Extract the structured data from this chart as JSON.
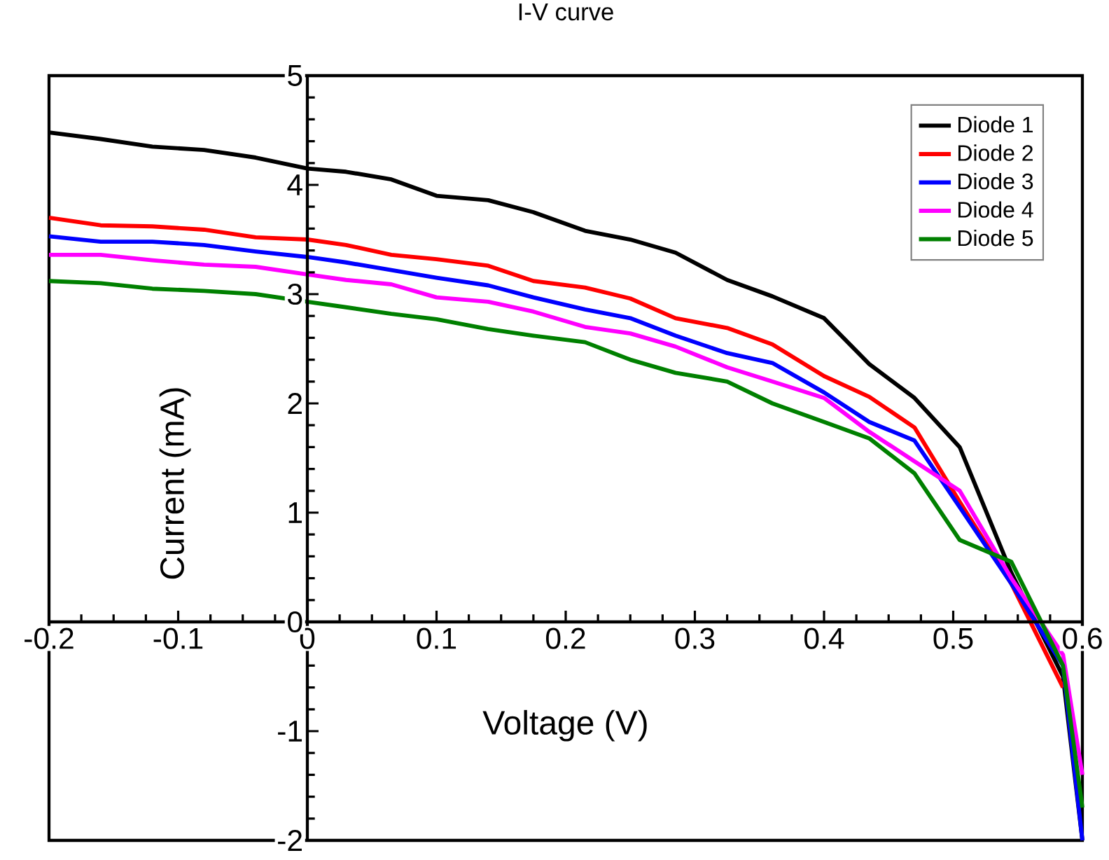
{
  "chart_data": {
    "type": "line",
    "title": "I-V curve",
    "xlabel": "Voltage (V)",
    "ylabel": "Current (mA)",
    "x": [
      -0.2,
      -0.16,
      -0.12,
      -0.08,
      -0.04,
      0,
      0.03,
      0.065,
      0.1,
      0.14,
      0.175,
      0.215,
      0.25,
      0.285,
      0.325,
      0.36,
      0.4,
      0.435,
      0.47,
      0.505,
      0.545,
      0.585,
      0.6
    ],
    "series": [
      {
        "name": "Diode 1",
        "color": "#000000",
        "values": [
          4.48,
          4.42,
          4.35,
          4.32,
          4.25,
          4.15,
          4.12,
          4.05,
          3.9,
          3.86,
          3.75,
          3.58,
          3.5,
          3.38,
          3.13,
          2.98,
          2.78,
          2.36,
          2.05,
          1.6,
          0.45,
          -0.5,
          -2.0
        ]
      },
      {
        "name": "Diode 2",
        "color": "#ff0000",
        "values": [
          3.7,
          3.63,
          3.62,
          3.59,
          3.52,
          3.5,
          3.45,
          3.36,
          3.32,
          3.26,
          3.12,
          3.06,
          2.96,
          2.78,
          2.69,
          2.54,
          2.25,
          2.06,
          1.78,
          1.1,
          0.35,
          -0.6,
          null
        ]
      },
      {
        "name": "Diode 3",
        "color": "#0000ff",
        "values": [
          3.53,
          3.48,
          3.48,
          3.45,
          3.39,
          3.34,
          3.29,
          3.22,
          3.15,
          3.08,
          2.97,
          2.86,
          2.78,
          2.62,
          2.46,
          2.37,
          2.1,
          1.83,
          1.66,
          1.05,
          0.35,
          -0.4,
          -2.0
        ]
      },
      {
        "name": "Diode 4",
        "color": "#ff00ff",
        "values": [
          3.36,
          3.36,
          3.31,
          3.27,
          3.25,
          3.18,
          3.13,
          3.09,
          2.97,
          2.93,
          2.84,
          2.7,
          2.64,
          2.52,
          2.33,
          2.2,
          2.05,
          1.74,
          1.47,
          1.2,
          0.4,
          -0.3,
          -1.4
        ]
      },
      {
        "name": "Diode 5",
        "color": "#008000",
        "values": [
          3.12,
          3.1,
          3.05,
          3.03,
          3.0,
          2.93,
          2.88,
          2.82,
          2.77,
          2.68,
          2.62,
          2.56,
          2.4,
          2.28,
          2.2,
          2.0,
          1.83,
          1.68,
          1.36,
          0.75,
          0.55,
          -0.4,
          -1.7
        ]
      }
    ],
    "xlim": [
      -0.2,
      0.6
    ],
    "ylim": [
      -2,
      5
    ],
    "xticks": [
      -0.2,
      -0.1,
      0,
      0.1,
      0.2,
      0.3,
      0.4,
      0.5,
      0.6
    ],
    "yticks": [
      -2,
      -1,
      0,
      1,
      2,
      3,
      4,
      5
    ],
    "legend": "top right"
  }
}
